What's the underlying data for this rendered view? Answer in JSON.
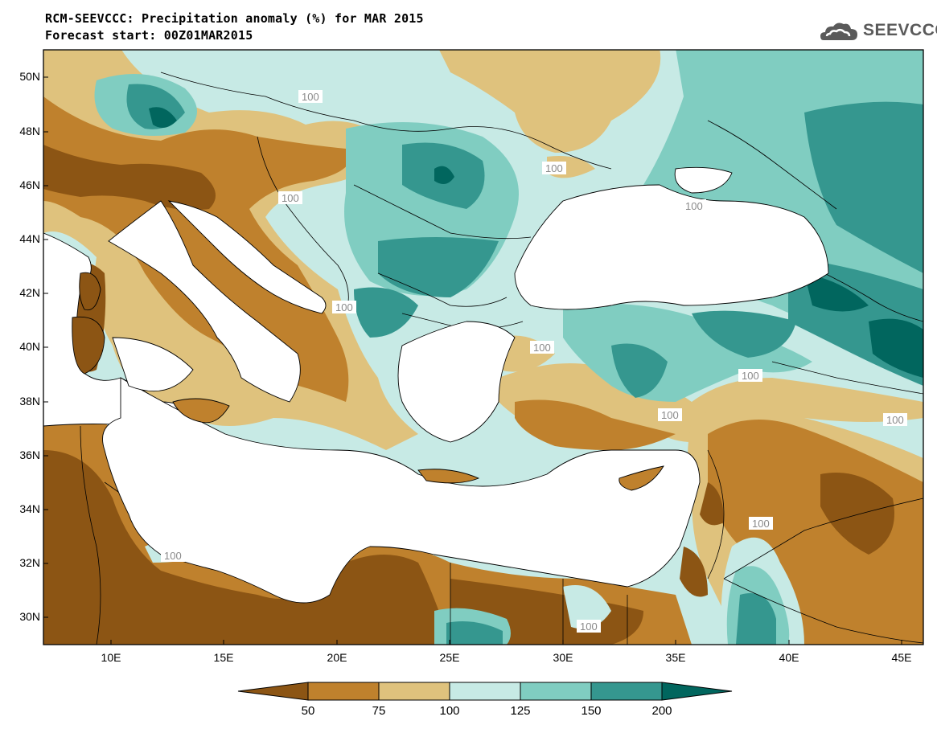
{
  "title_line1": "RCM-SEEVCCC: Precipitation anomaly (%) for MAR 2015",
  "title_line2": "Forecast start: 00Z01MAR2015",
  "logo": {
    "text": "SEEVCCC",
    "icon": "cloud-logo-icon"
  },
  "map": {
    "lon_range": [
      7,
      46
    ],
    "lat_range": [
      29,
      51
    ],
    "lat_ticks": [
      "50N",
      "48N",
      "46N",
      "44N",
      "42N",
      "40N",
      "38N",
      "36N",
      "34N",
      "32N",
      "30N"
    ],
    "lon_ticks": [
      "10E",
      "15E",
      "20E",
      "25E",
      "30E",
      "35E",
      "40E",
      "45E"
    ],
    "contour_label": "100"
  },
  "colorbar": {
    "labels": [
      "50",
      "75",
      "100",
      "125",
      "150",
      "200"
    ],
    "colors": [
      "#8c5514",
      "#bf812d",
      "#dfc27d",
      "#c7eae5",
      "#80cdc1",
      "#35978f",
      "#01665e"
    ]
  }
}
